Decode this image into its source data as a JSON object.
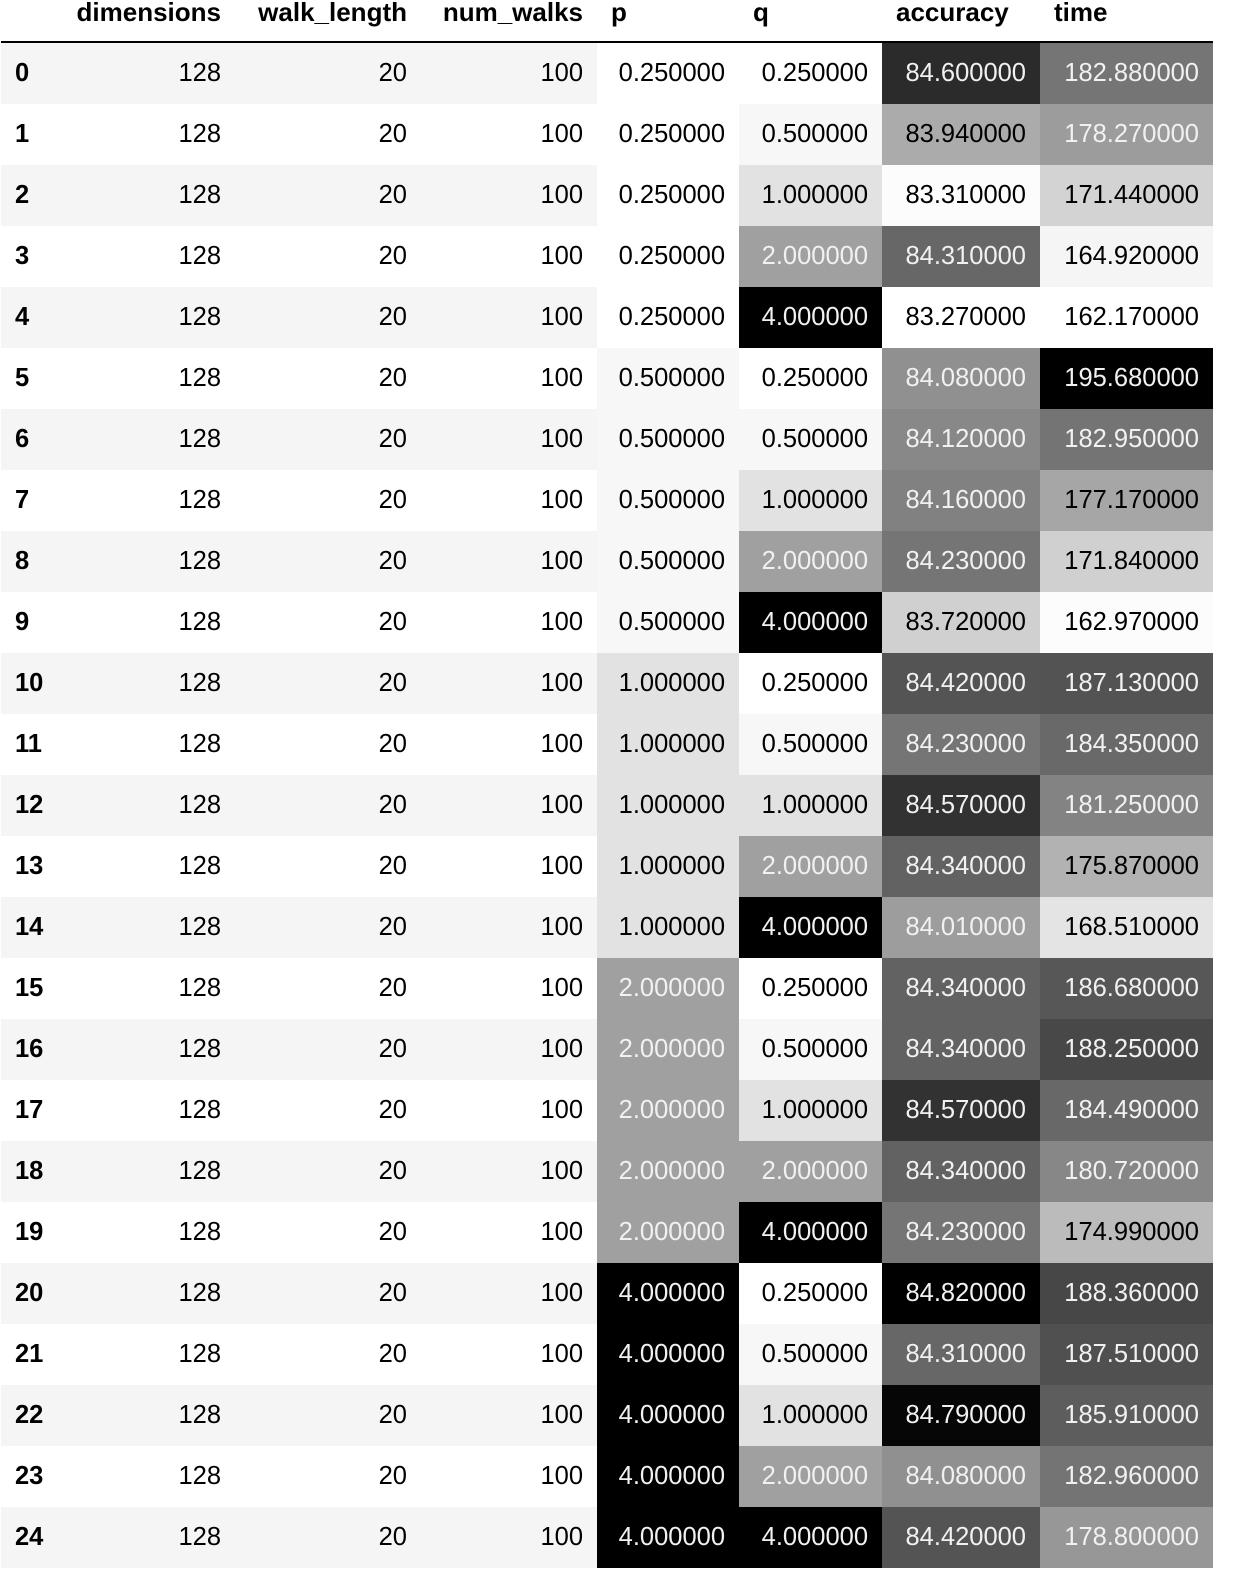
{
  "table": {
    "columns": [
      "",
      "dimensions",
      "walk_length",
      "num_walks",
      "p",
      "q",
      "accuracy",
      "time"
    ],
    "rows": [
      {
        "index": "0",
        "dimensions": "128",
        "walk_length": "20",
        "num_walks": "100",
        "p": "0.250000",
        "q": "0.250000",
        "accuracy": "84.600000",
        "time": "182.880000"
      },
      {
        "index": "1",
        "dimensions": "128",
        "walk_length": "20",
        "num_walks": "100",
        "p": "0.250000",
        "q": "0.500000",
        "accuracy": "83.940000",
        "time": "178.270000"
      },
      {
        "index": "2",
        "dimensions": "128",
        "walk_length": "20",
        "num_walks": "100",
        "p": "0.250000",
        "q": "1.000000",
        "accuracy": "83.310000",
        "time": "171.440000"
      },
      {
        "index": "3",
        "dimensions": "128",
        "walk_length": "20",
        "num_walks": "100",
        "p": "0.250000",
        "q": "2.000000",
        "accuracy": "84.310000",
        "time": "164.920000"
      },
      {
        "index": "4",
        "dimensions": "128",
        "walk_length": "20",
        "num_walks": "100",
        "p": "0.250000",
        "q": "4.000000",
        "accuracy": "83.270000",
        "time": "162.170000"
      },
      {
        "index": "5",
        "dimensions": "128",
        "walk_length": "20",
        "num_walks": "100",
        "p": "0.500000",
        "q": "0.250000",
        "accuracy": "84.080000",
        "time": "195.680000"
      },
      {
        "index": "6",
        "dimensions": "128",
        "walk_length": "20",
        "num_walks": "100",
        "p": "0.500000",
        "q": "0.500000",
        "accuracy": "84.120000",
        "time": "182.950000"
      },
      {
        "index": "7",
        "dimensions": "128",
        "walk_length": "20",
        "num_walks": "100",
        "p": "0.500000",
        "q": "1.000000",
        "accuracy": "84.160000",
        "time": "177.170000"
      },
      {
        "index": "8",
        "dimensions": "128",
        "walk_length": "20",
        "num_walks": "100",
        "p": "0.500000",
        "q": "2.000000",
        "accuracy": "84.230000",
        "time": "171.840000"
      },
      {
        "index": "9",
        "dimensions": "128",
        "walk_length": "20",
        "num_walks": "100",
        "p": "0.500000",
        "q": "4.000000",
        "accuracy": "83.720000",
        "time": "162.970000"
      },
      {
        "index": "10",
        "dimensions": "128",
        "walk_length": "20",
        "num_walks": "100",
        "p": "1.000000",
        "q": "0.250000",
        "accuracy": "84.420000",
        "time": "187.130000"
      },
      {
        "index": "11",
        "dimensions": "128",
        "walk_length": "20",
        "num_walks": "100",
        "p": "1.000000",
        "q": "0.500000",
        "accuracy": "84.230000",
        "time": "184.350000"
      },
      {
        "index": "12",
        "dimensions": "128",
        "walk_length": "20",
        "num_walks": "100",
        "p": "1.000000",
        "q": "1.000000",
        "accuracy": "84.570000",
        "time": "181.250000"
      },
      {
        "index": "13",
        "dimensions": "128",
        "walk_length": "20",
        "num_walks": "100",
        "p": "1.000000",
        "q": "2.000000",
        "accuracy": "84.340000",
        "time": "175.870000"
      },
      {
        "index": "14",
        "dimensions": "128",
        "walk_length": "20",
        "num_walks": "100",
        "p": "1.000000",
        "q": "4.000000",
        "accuracy": "84.010000",
        "time": "168.510000"
      },
      {
        "index": "15",
        "dimensions": "128",
        "walk_length": "20",
        "num_walks": "100",
        "p": "2.000000",
        "q": "0.250000",
        "accuracy": "84.340000",
        "time": "186.680000"
      },
      {
        "index": "16",
        "dimensions": "128",
        "walk_length": "20",
        "num_walks": "100",
        "p": "2.000000",
        "q": "0.500000",
        "accuracy": "84.340000",
        "time": "188.250000"
      },
      {
        "index": "17",
        "dimensions": "128",
        "walk_length": "20",
        "num_walks": "100",
        "p": "2.000000",
        "q": "1.000000",
        "accuracy": "84.570000",
        "time": "184.490000"
      },
      {
        "index": "18",
        "dimensions": "128",
        "walk_length": "20",
        "num_walks": "100",
        "p": "2.000000",
        "q": "2.000000",
        "accuracy": "84.340000",
        "time": "180.720000"
      },
      {
        "index": "19",
        "dimensions": "128",
        "walk_length": "20",
        "num_walks": "100",
        "p": "2.000000",
        "q": "4.000000",
        "accuracy": "84.230000",
        "time": "174.990000"
      },
      {
        "index": "20",
        "dimensions": "128",
        "walk_length": "20",
        "num_walks": "100",
        "p": "4.000000",
        "q": "0.250000",
        "accuracy": "84.820000",
        "time": "188.360000"
      },
      {
        "index": "21",
        "dimensions": "128",
        "walk_length": "20",
        "num_walks": "100",
        "p": "4.000000",
        "q": "0.500000",
        "accuracy": "84.310000",
        "time": "187.510000"
      },
      {
        "index": "22",
        "dimensions": "128",
        "walk_length": "20",
        "num_walks": "100",
        "p": "4.000000",
        "q": "1.000000",
        "accuracy": "84.790000",
        "time": "185.910000"
      },
      {
        "index": "23",
        "dimensions": "128",
        "walk_length": "20",
        "num_walks": "100",
        "p": "4.000000",
        "q": "2.000000",
        "accuracy": "84.080000",
        "time": "182.960000"
      },
      {
        "index": "24",
        "dimensions": "128",
        "walk_length": "20",
        "num_walks": "100",
        "p": "4.000000",
        "q": "4.000000",
        "accuracy": "84.420000",
        "time": "178.800000"
      }
    ],
    "gradient_columns": [
      "p",
      "q",
      "accuracy",
      "time"
    ],
    "gradient_colormap": "Greys"
  }
}
